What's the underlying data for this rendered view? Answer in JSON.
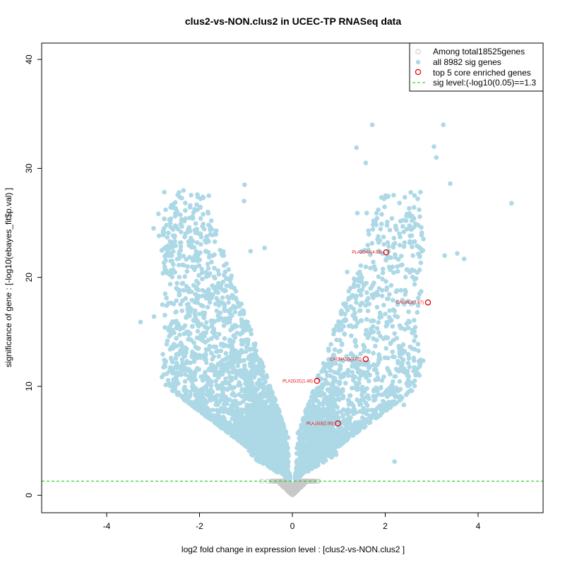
{
  "chart_data": {
    "type": "scatter",
    "title": "clus2-vs-NON.clus2 in UCEC-TP RNASeq data",
    "xlabel": "log2 fold change in expression level : [clus2-vs-NON.clus2 ]",
    "ylabel": "significance of gene : [-log10(ebayes_fit$p.val) ]",
    "xlim": [
      -5.4,
      5.4
    ],
    "ylim": [
      -1.6,
      41.5
    ],
    "xticks": [
      -4,
      -2,
      0,
      2,
      4
    ],
    "yticks": [
      0,
      10,
      20,
      30,
      40
    ],
    "sig_level": 1.3,
    "legend": {
      "position": "top-right",
      "entries": [
        {
          "label": "Among total18525genes",
          "marker": "open-circle",
          "color": "#c8c8c8"
        },
        {
          "label": "all 8982 sig genes",
          "marker": "filled-circle",
          "color": "#add8e6"
        },
        {
          "label": "top 5 core enriched genes",
          "marker": "open-circle",
          "color": "#e60000"
        },
        {
          "label": "sig level:(-log10(0.05)==1.3",
          "marker": "dashed-line",
          "color": "#00cc00"
        }
      ]
    },
    "colors": {
      "nonsig": "#c8c8c8",
      "sig": "#add8e6",
      "core": "#e60000",
      "sig_line": "#00cc00"
    },
    "core_genes": [
      {
        "label": "PLA2G4A(4.03)",
        "x": 2.02,
        "y": 22.3
      },
      {
        "label": "CALML3(7.67)",
        "x": 2.92,
        "y": 17.7
      },
      {
        "label": "CACNA1G(3.02)",
        "x": 1.58,
        "y": 12.5
      },
      {
        "label": "PLA2G2C(1.48)",
        "x": 0.53,
        "y": 10.5
      },
      {
        "label": "PLA2G3(2.00)",
        "x": 0.98,
        "y": 6.6
      }
    ],
    "outliers": [
      {
        "x": -3.27,
        "y": 15.9
      },
      {
        "x": -2.98,
        "y": 16.4
      },
      {
        "x": -2.99,
        "y": 24.5
      },
      {
        "x": -2.65,
        "y": 11.4
      },
      {
        "x": -2.65,
        "y": 25.3
      },
      {
        "x": -2.62,
        "y": 21.5
      },
      {
        "x": -2.5,
        "y": 14.4
      },
      {
        "x": -2.4,
        "y": 23.2
      },
      {
        "x": -2.3,
        "y": 25.4
      },
      {
        "x": -2.2,
        "y": 26.6
      },
      {
        "x": -1.98,
        "y": 26.4
      },
      {
        "x": -1.8,
        "y": 27.5
      },
      {
        "x": -1.03,
        "y": 28.5
      },
      {
        "x": -1.04,
        "y": 27.0
      },
      {
        "x": -0.9,
        "y": 22.4
      },
      {
        "x": -0.6,
        "y": 22.7
      },
      {
        "x": 1.38,
        "y": 31.9
      },
      {
        "x": 1.58,
        "y": 30.5
      },
      {
        "x": 1.72,
        "y": 34.0
      },
      {
        "x": 3.25,
        "y": 34.0
      },
      {
        "x": 3.05,
        "y": 32.0
      },
      {
        "x": 3.1,
        "y": 31.0
      },
      {
        "x": 3.4,
        "y": 28.6
      },
      {
        "x": 4.72,
        "y": 26.8
      },
      {
        "x": 3.55,
        "y": 22.2
      },
      {
        "x": 3.7,
        "y": 21.7
      },
      {
        "x": 3.28,
        "y": 22.0
      },
      {
        "x": 1.4,
        "y": 25.9
      },
      {
        "x": 1.6,
        "y": 25.9
      },
      {
        "x": 1.85,
        "y": 26.2
      },
      {
        "x": 2.55,
        "y": 27.8
      },
      {
        "x": 2.7,
        "y": 27.2
      },
      {
        "x": 2.45,
        "y": 25.2
      },
      {
        "x": 2.2,
        "y": 3.1
      },
      {
        "x": 2.4,
        "y": 8.3
      },
      {
        "x": 1.18,
        "y": 20.5
      }
    ]
  }
}
